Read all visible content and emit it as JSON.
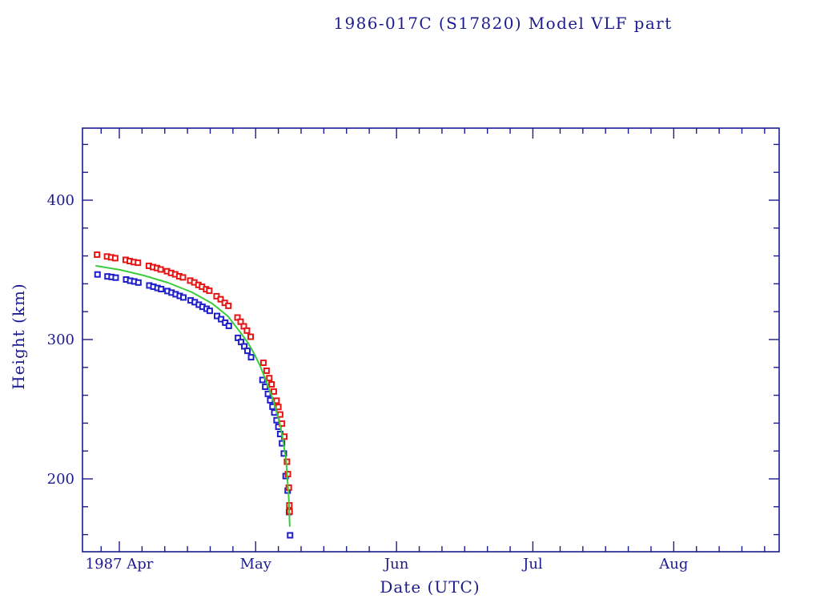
{
  "chart_data": {
    "type": "scatter",
    "title": "1986-017C (S17820) Model VLF part",
    "xlabel": "Date (UTC)",
    "ylabel": "Height (km)",
    "x_unit": "days since 1987 Apr 1 (UTC)",
    "xlim_days": [
      -8.1,
      145.2
    ],
    "ylim_km": [
      148,
      452
    ],
    "grid": false,
    "legend": "none",
    "x_month_ticks": [
      {
        "label": "1987 Apr",
        "day": 0
      },
      {
        "label": "May",
        "day": 30
      },
      {
        "label": "Jun",
        "day": 61
      },
      {
        "label": "Jul",
        "day": 91
      },
      {
        "label": "Aug",
        "day": 122
      }
    ],
    "x_minor_tick_days": [
      -4,
      5,
      10,
      15,
      20,
      25,
      35,
      40,
      45,
      50,
      55,
      66,
      71,
      76,
      81,
      86,
      97,
      102,
      107,
      112,
      117,
      127,
      132,
      137,
      142
    ],
    "y_major_ticks": [
      200,
      300,
      400
    ],
    "y_minor_ticks": [
      160,
      180,
      220,
      240,
      260,
      280,
      320,
      340,
      360,
      380,
      420,
      440
    ],
    "series": [
      {
        "name": "observed-height-upper",
        "marker": "open-square",
        "color": "#e81414",
        "points": [
          [
            -4.9,
            360.9
          ],
          [
            -2.7,
            359.6
          ],
          [
            -1.8,
            359.0
          ],
          [
            -0.9,
            358.4
          ],
          [
            1.4,
            357.2
          ],
          [
            2.3,
            356.3
          ],
          [
            3.2,
            355.6
          ],
          [
            4.1,
            355.1
          ],
          [
            6.5,
            352.9
          ],
          [
            7.4,
            352.0
          ],
          [
            8.3,
            351.3
          ],
          [
            9.1,
            350.3
          ],
          [
            10.5,
            349.0
          ],
          [
            11.4,
            347.8
          ],
          [
            12.3,
            346.8
          ],
          [
            13.2,
            345.4
          ],
          [
            14.0,
            344.6
          ],
          [
            15.6,
            342.3
          ],
          [
            16.5,
            341.0
          ],
          [
            17.4,
            339.2
          ],
          [
            18.2,
            337.9
          ],
          [
            19.1,
            336.1
          ],
          [
            19.8,
            335.0
          ],
          [
            21.4,
            331.1
          ],
          [
            22.3,
            328.9
          ],
          [
            23.2,
            326.3
          ],
          [
            24.0,
            324.2
          ],
          [
            26.0,
            315.8
          ],
          [
            26.7,
            312.8
          ],
          [
            27.4,
            309.5
          ],
          [
            28.1,
            306.4
          ],
          [
            28.9,
            302.0
          ],
          [
            31.7,
            283.3
          ],
          [
            32.4,
            277.6
          ],
          [
            33.0,
            272.3
          ],
          [
            33.5,
            267.8
          ],
          [
            34.0,
            262.7
          ],
          [
            34.6,
            256.1
          ],
          [
            35.0,
            251.6
          ],
          [
            35.4,
            246.2
          ],
          [
            35.8,
            239.7
          ],
          [
            36.3,
            230.3
          ],
          [
            36.9,
            212.3
          ],
          [
            37.1,
            203.4
          ],
          [
            37.3,
            193.7
          ],
          [
            37.42,
            181.0
          ],
          [
            37.48,
            176.5
          ]
        ]
      },
      {
        "name": "observed-height-lower",
        "marker": "open-square",
        "color": "#1e1ecd",
        "points": [
          [
            -4.8,
            346.7
          ],
          [
            -2.6,
            345.3
          ],
          [
            -1.7,
            344.9
          ],
          [
            -0.8,
            344.4
          ],
          [
            1.5,
            343.1
          ],
          [
            2.4,
            342.2
          ],
          [
            3.3,
            341.7
          ],
          [
            4.2,
            340.9
          ],
          [
            6.6,
            338.8
          ],
          [
            7.5,
            337.9
          ],
          [
            8.4,
            337.0
          ],
          [
            9.2,
            336.2
          ],
          [
            10.6,
            334.8
          ],
          [
            11.5,
            333.7
          ],
          [
            12.4,
            332.5
          ],
          [
            13.3,
            331.3
          ],
          [
            14.1,
            330.2
          ],
          [
            15.7,
            328.1
          ],
          [
            16.6,
            326.8
          ],
          [
            17.5,
            325.0
          ],
          [
            18.3,
            323.5
          ],
          [
            19.2,
            322.1
          ],
          [
            19.9,
            320.6
          ],
          [
            21.5,
            316.9
          ],
          [
            22.4,
            314.6
          ],
          [
            23.3,
            312.1
          ],
          [
            24.1,
            309.8
          ],
          [
            26.1,
            301.2
          ],
          [
            26.8,
            298.2
          ],
          [
            27.5,
            295.1
          ],
          [
            28.2,
            291.9
          ],
          [
            29.0,
            287.3
          ],
          [
            31.5,
            271.0
          ],
          [
            32.1,
            266.1
          ],
          [
            32.7,
            261.0
          ],
          [
            33.2,
            256.4
          ],
          [
            33.7,
            251.8
          ],
          [
            34.1,
            247.6
          ],
          [
            34.6,
            242.1
          ],
          [
            35.0,
            237.4
          ],
          [
            35.4,
            232.2
          ],
          [
            35.8,
            225.5
          ],
          [
            36.2,
            218.2
          ],
          [
            36.6,
            202.0
          ],
          [
            37.05,
            191.6
          ],
          [
            37.35,
            176.2
          ],
          [
            37.58,
            159.5
          ]
        ]
      },
      {
        "name": "model-decay-curve",
        "type": "line",
        "color": "#3bcc3b",
        "points": [
          [
            -5.1,
            352.9
          ],
          [
            0.2,
            350.0
          ],
          [
            5.4,
            346.0
          ],
          [
            10.7,
            340.8
          ],
          [
            16.0,
            333.9
          ],
          [
            20.4,
            325.9
          ],
          [
            23.9,
            316.7
          ],
          [
            26.5,
            305.7
          ],
          [
            28.3,
            297.7
          ],
          [
            29.7,
            289.7
          ],
          [
            30.9,
            281.6
          ],
          [
            31.9,
            273.6
          ],
          [
            32.8,
            266.1
          ],
          [
            33.7,
            258.0
          ],
          [
            34.4,
            250.6
          ],
          [
            35.1,
            242.5
          ],
          [
            35.6,
            235.1
          ],
          [
            36.0,
            228.7
          ],
          [
            36.3,
            221.8
          ],
          [
            36.7,
            213.8
          ],
          [
            36.85,
            206.9
          ],
          [
            37.0,
            198.9
          ],
          [
            37.2,
            190.8
          ],
          [
            37.36,
            181.6
          ],
          [
            37.42,
            173.0
          ],
          [
            37.5,
            166.1
          ]
        ]
      }
    ]
  },
  "colors": {
    "frame": "#1c1c8f",
    "text": "#1c1c8f",
    "background": "#ffffff"
  }
}
